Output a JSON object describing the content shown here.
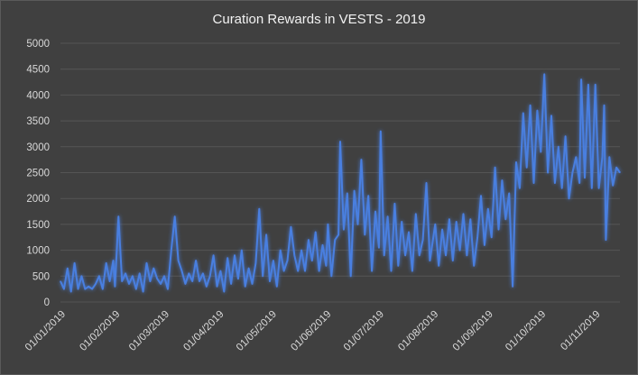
{
  "chart_data": {
    "type": "line",
    "title": "Curation Rewards in VESTS - 2019",
    "xlabel": "",
    "ylabel": "",
    "ylim": [
      0,
      5000
    ],
    "yticks": [
      0,
      500,
      1000,
      1500,
      2000,
      2500,
      3000,
      3500,
      4000,
      4500,
      5000
    ],
    "grid": true,
    "legend": "none",
    "xlim": [
      "2019-01-01",
      "2019-11-15"
    ],
    "x_tick_labels": [
      "01/01/2019",
      "01/02/2019",
      "01/03/2019",
      "01/04/2019",
      "01/05/2019",
      "01/06/2019",
      "01/07/2019",
      "01/08/2019",
      "01/09/2019",
      "01/10/2019",
      "01/11/2019"
    ],
    "x_tick_dates": [
      "2019-01-01",
      "2019-02-01",
      "2019-03-01",
      "2019-04-01",
      "2019-05-01",
      "2019-06-01",
      "2019-07-01",
      "2019-08-01",
      "2019-09-01",
      "2019-10-01",
      "2019-11-01"
    ],
    "colors": {
      "line": "#4a7fe0",
      "background": "#404040",
      "grid": "#555555",
      "text": "#d9d9d9"
    },
    "series": [
      {
        "values": [
          [
            "2019-01-01",
            400
          ],
          [
            "2019-01-03",
            250
          ],
          [
            "2019-01-05",
            650
          ],
          [
            "2019-01-07",
            200
          ],
          [
            "2019-01-09",
            750
          ],
          [
            "2019-01-11",
            250
          ],
          [
            "2019-01-13",
            500
          ],
          [
            "2019-01-15",
            250
          ],
          [
            "2019-01-17",
            300
          ],
          [
            "2019-01-19",
            250
          ],
          [
            "2019-01-21",
            350
          ],
          [
            "2019-01-23",
            500
          ],
          [
            "2019-01-25",
            250
          ],
          [
            "2019-01-27",
            750
          ],
          [
            "2019-01-29",
            400
          ],
          [
            "2019-01-31",
            800
          ],
          [
            "2019-02-01",
            300
          ],
          [
            "2019-02-03",
            1650
          ],
          [
            "2019-02-05",
            400
          ],
          [
            "2019-02-07",
            550
          ],
          [
            "2019-02-09",
            350
          ],
          [
            "2019-02-11",
            500
          ],
          [
            "2019-02-13",
            250
          ],
          [
            "2019-02-15",
            550
          ],
          [
            "2019-02-17",
            200
          ],
          [
            "2019-02-19",
            750
          ],
          [
            "2019-02-21",
            400
          ],
          [
            "2019-02-23",
            650
          ],
          [
            "2019-02-25",
            450
          ],
          [
            "2019-02-27",
            350
          ],
          [
            "2019-03-01",
            500
          ],
          [
            "2019-03-03",
            250
          ],
          [
            "2019-03-05",
            1000
          ],
          [
            "2019-03-07",
            1650
          ],
          [
            "2019-03-09",
            800
          ],
          [
            "2019-03-11",
            600
          ],
          [
            "2019-03-13",
            350
          ],
          [
            "2019-03-15",
            550
          ],
          [
            "2019-03-17",
            400
          ],
          [
            "2019-03-19",
            800
          ],
          [
            "2019-03-21",
            400
          ],
          [
            "2019-03-23",
            550
          ],
          [
            "2019-03-25",
            300
          ],
          [
            "2019-03-27",
            500
          ],
          [
            "2019-03-29",
            900
          ],
          [
            "2019-03-31",
            300
          ],
          [
            "2019-04-02",
            600
          ],
          [
            "2019-04-04",
            200
          ],
          [
            "2019-04-06",
            850
          ],
          [
            "2019-04-08",
            350
          ],
          [
            "2019-04-10",
            900
          ],
          [
            "2019-04-12",
            450
          ],
          [
            "2019-04-14",
            1000
          ],
          [
            "2019-04-16",
            300
          ],
          [
            "2019-04-18",
            650
          ],
          [
            "2019-04-20",
            350
          ],
          [
            "2019-04-22",
            750
          ],
          [
            "2019-04-24",
            1800
          ],
          [
            "2019-04-26",
            500
          ],
          [
            "2019-04-28",
            1300
          ],
          [
            "2019-04-30",
            400
          ],
          [
            "2019-05-02",
            800
          ],
          [
            "2019-05-04",
            300
          ],
          [
            "2019-05-06",
            1000
          ],
          [
            "2019-05-08",
            600
          ],
          [
            "2019-05-10",
            800
          ],
          [
            "2019-05-12",
            1450
          ],
          [
            "2019-05-14",
            900
          ],
          [
            "2019-05-16",
            600
          ],
          [
            "2019-05-18",
            1000
          ],
          [
            "2019-05-20",
            600
          ],
          [
            "2019-05-22",
            1200
          ],
          [
            "2019-05-24",
            800
          ],
          [
            "2019-05-26",
            1350
          ],
          [
            "2019-05-28",
            600
          ],
          [
            "2019-05-30",
            1100
          ],
          [
            "2019-06-01",
            700
          ],
          [
            "2019-06-02",
            1500
          ],
          [
            "2019-06-04",
            500
          ],
          [
            "2019-06-06",
            1200
          ],
          [
            "2019-06-08",
            1300
          ],
          [
            "2019-06-09",
            3100
          ],
          [
            "2019-06-11",
            1400
          ],
          [
            "2019-06-13",
            2100
          ],
          [
            "2019-06-15",
            500
          ],
          [
            "2019-06-17",
            2150
          ],
          [
            "2019-06-19",
            1500
          ],
          [
            "2019-06-21",
            2750
          ],
          [
            "2019-06-23",
            1300
          ],
          [
            "2019-06-25",
            2050
          ],
          [
            "2019-06-27",
            600
          ],
          [
            "2019-06-29",
            1750
          ],
          [
            "2019-07-01",
            1050
          ],
          [
            "2019-07-02",
            3300
          ],
          [
            "2019-07-04",
            900
          ],
          [
            "2019-07-06",
            1650
          ],
          [
            "2019-07-08",
            600
          ],
          [
            "2019-07-10",
            1900
          ],
          [
            "2019-07-12",
            700
          ],
          [
            "2019-07-14",
            1550
          ],
          [
            "2019-07-16",
            900
          ],
          [
            "2019-07-18",
            1350
          ],
          [
            "2019-07-20",
            600
          ],
          [
            "2019-07-22",
            1700
          ],
          [
            "2019-07-24",
            900
          ],
          [
            "2019-07-26",
            1200
          ],
          [
            "2019-07-28",
            2300
          ],
          [
            "2019-07-30",
            800
          ],
          [
            "2019-08-02",
            1500
          ],
          [
            "2019-08-04",
            700
          ],
          [
            "2019-08-06",
            1400
          ],
          [
            "2019-08-08",
            900
          ],
          [
            "2019-08-10",
            1600
          ],
          [
            "2019-08-12",
            800
          ],
          [
            "2019-08-14",
            1550
          ],
          [
            "2019-08-16",
            1000
          ],
          [
            "2019-08-18",
            1700
          ],
          [
            "2019-08-20",
            900
          ],
          [
            "2019-08-22",
            1600
          ],
          [
            "2019-08-24",
            700
          ],
          [
            "2019-08-26",
            1250
          ],
          [
            "2019-08-28",
            2050
          ],
          [
            "2019-08-30",
            1100
          ],
          [
            "2019-09-01",
            1800
          ],
          [
            "2019-09-03",
            1250
          ],
          [
            "2019-09-05",
            2600
          ],
          [
            "2019-09-07",
            1400
          ],
          [
            "2019-09-09",
            2350
          ],
          [
            "2019-09-11",
            1600
          ],
          [
            "2019-09-13",
            2100
          ],
          [
            "2019-09-15",
            300
          ],
          [
            "2019-09-17",
            2700
          ],
          [
            "2019-09-19",
            2200
          ],
          [
            "2019-09-21",
            3650
          ],
          [
            "2019-09-23",
            2600
          ],
          [
            "2019-09-25",
            3800
          ],
          [
            "2019-09-27",
            2300
          ],
          [
            "2019-09-29",
            3700
          ],
          [
            "2019-10-01",
            2900
          ],
          [
            "2019-10-03",
            4400
          ],
          [
            "2019-10-05",
            2500
          ],
          [
            "2019-10-07",
            3600
          ],
          [
            "2019-10-09",
            2300
          ],
          [
            "2019-10-11",
            3000
          ],
          [
            "2019-10-13",
            2200
          ],
          [
            "2019-10-15",
            3200
          ],
          [
            "2019-10-17",
            2000
          ],
          [
            "2019-10-19",
            2500
          ],
          [
            "2019-10-21",
            2800
          ],
          [
            "2019-10-23",
            2300
          ],
          [
            "2019-10-24",
            4300
          ],
          [
            "2019-10-26",
            2400
          ],
          [
            "2019-10-28",
            4200
          ],
          [
            "2019-10-30",
            2200
          ],
          [
            "2019-11-01",
            4200
          ],
          [
            "2019-11-03",
            2200
          ],
          [
            "2019-11-05",
            2800
          ],
          [
            "2019-11-06",
            3800
          ],
          [
            "2019-11-07",
            1200
          ],
          [
            "2019-11-09",
            2800
          ],
          [
            "2019-11-11",
            2250
          ],
          [
            "2019-11-13",
            2600
          ],
          [
            "2019-11-15",
            2500
          ]
        ]
      }
    ]
  }
}
